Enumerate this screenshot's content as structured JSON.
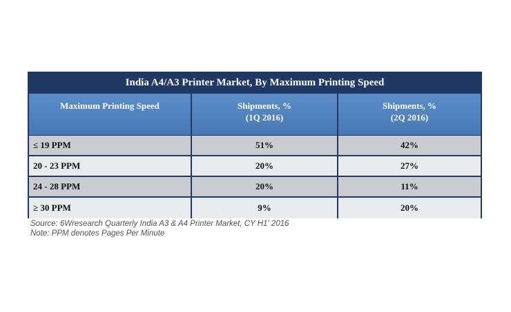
{
  "chart_data": {
    "type": "table",
    "title": "India A4/A3 Printer Market, By Maximum Printing Speed",
    "columns": [
      "Maximum Printing Speed",
      "Shipments, %\n(1Q 2016)",
      "Shipments, %\n(2Q 2016)"
    ],
    "columns_display": [
      {
        "line1": "Maximum Printing Speed",
        "line2": ""
      },
      {
        "line1": "Shipments, %",
        "line2": "(1Q 2016)"
      },
      {
        "line1": "Shipments, %",
        "line2": "(2Q 2016)"
      }
    ],
    "categories": [
      "≤ 19 PPM",
      "20 - 23 PPM",
      "24 - 28 PPM",
      "≥ 30 PPM"
    ],
    "series": [
      {
        "name": "Shipments, % (1Q 2016)",
        "values": [
          51,
          20,
          20,
          9
        ]
      },
      {
        "name": "Shipments, % (2Q 2016)",
        "values": [
          42,
          27,
          11,
          20
        ]
      }
    ],
    "rows": [
      [
        "≤ 19 PPM",
        "51%",
        "42%"
      ],
      [
        "20 - 23 PPM",
        "20%",
        "27%"
      ],
      [
        "24 - 28 PPM",
        "20%",
        "11%"
      ],
      [
        "≥ 30 PPM",
        "9%",
        "20%"
      ]
    ]
  },
  "notes": {
    "source": "Source: 6Wresearch Quarterly India A3 & A4 Printer Market, CY H1' 2016",
    "note": "Note: PPM denotes Pages Per Minute"
  },
  "colors": {
    "title_bg": "#1f3864",
    "header_bg": "#4f81bd",
    "row_odd": "#c9ccd1",
    "row_even": "#eaebed"
  }
}
